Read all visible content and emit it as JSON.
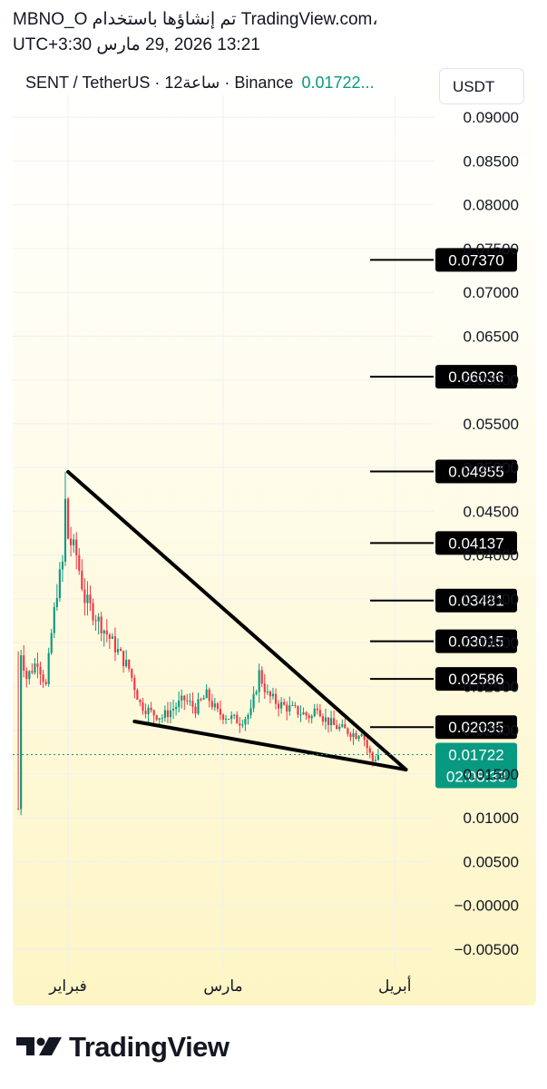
{
  "header": {
    "line1": "MBNO_O تم إنشاؤها باستخدام TradingView.com،",
    "line2": "13:21 2026 ,29 مارس UTC+3:30"
  },
  "legend": {
    "symbol": "SENT / TetherUS · 12ساعة · Binance",
    "price": "0.01722..."
  },
  "unit": "USDT",
  "brand": "TradingView",
  "colors": {
    "up": "#089981",
    "down": "#f23645",
    "line": "#000000",
    "price_badge": "#089981"
  },
  "chart_data": {
    "type": "candlestick",
    "ylim": [
      -0.0075,
      0.0925
    ],
    "y_ticks": [
      "0.09000",
      "0.08500",
      "0.08000",
      "0.07500",
      "0.07000",
      "0.06500",
      "0.06000",
      "0.05500",
      "0.05000",
      "0.04500",
      "0.04000",
      "0.03500",
      "0.03000",
      "0.02500",
      "0.02000",
      "0.01500",
      "0.01000",
      "0.00500",
      "−0.00000",
      "−0.00500"
    ],
    "x_labels": [
      {
        "label": "فبراير",
        "day": 4.0
      },
      {
        "label": "مارس",
        "day": 32.0
      },
      {
        "label": "أبريل",
        "day": 63.0
      }
    ],
    "x_range_days": [
      -6.0,
      70.0
    ],
    "candle_interval_days": 0.5,
    "anchor_points": [
      {
        "day": -5.0,
        "price": 0.011
      },
      {
        "day": -4.5,
        "price": 0.029
      },
      {
        "day": -3.5,
        "price": 0.026
      },
      {
        "day": -1.5,
        "price": 0.028
      },
      {
        "day": 0.0,
        "price": 0.025
      },
      {
        "day": 1.0,
        "price": 0.031
      },
      {
        "day": 2.0,
        "price": 0.036
      },
      {
        "day": 3.0,
        "price": 0.039
      },
      {
        "day": 3.5,
        "price": 0.046
      },
      {
        "day": 4.0,
        "price": 0.042
      },
      {
        "day": 5.5,
        "price": 0.04
      },
      {
        "day": 7.0,
        "price": 0.035
      },
      {
        "day": 9.0,
        "price": 0.033
      },
      {
        "day": 11.0,
        "price": 0.031
      },
      {
        "day": 13.0,
        "price": 0.029
      },
      {
        "day": 15.0,
        "price": 0.027
      },
      {
        "day": 17.0,
        "price": 0.023
      },
      {
        "day": 19.0,
        "price": 0.022
      },
      {
        "day": 21.0,
        "price": 0.0215
      },
      {
        "day": 23.0,
        "price": 0.0225
      },
      {
        "day": 25.0,
        "price": 0.0235
      },
      {
        "day": 27.0,
        "price": 0.0225
      },
      {
        "day": 29.0,
        "price": 0.024
      },
      {
        "day": 31.0,
        "price": 0.022
      },
      {
        "day": 33.0,
        "price": 0.0215
      },
      {
        "day": 35.0,
        "price": 0.021
      },
      {
        "day": 37.0,
        "price": 0.022
      },
      {
        "day": 38.5,
        "price": 0.0265
      },
      {
        "day": 40.0,
        "price": 0.024
      },
      {
        "day": 42.0,
        "price": 0.023
      },
      {
        "day": 44.0,
        "price": 0.0225
      },
      {
        "day": 46.0,
        "price": 0.022
      },
      {
        "day": 48.0,
        "price": 0.0215
      },
      {
        "day": 49.0,
        "price": 0.023
      },
      {
        "day": 50.0,
        "price": 0.0215
      },
      {
        "day": 52.0,
        "price": 0.0205
      },
      {
        "day": 54.0,
        "price": 0.02
      },
      {
        "day": 56.0,
        "price": 0.0195
      },
      {
        "day": 57.0,
        "price": 0.02
      },
      {
        "day": 58.0,
        "price": 0.018
      },
      {
        "day": 59.0,
        "price": 0.0165
      },
      {
        "day": 60.0,
        "price": 0.0172
      }
    ],
    "trendlines": [
      {
        "from": {
          "day": 4.0,
          "price": 0.0495
        },
        "to": {
          "day": 65.0,
          "price": 0.0155
        }
      },
      {
        "from": {
          "day": 16.0,
          "price": 0.021
        },
        "to": {
          "day": 65.0,
          "price": 0.0155
        }
      }
    ],
    "horizontal_levels": [
      {
        "price": 0.0737,
        "label": "0.07370"
      },
      {
        "price": 0.06036,
        "label": "0.06036"
      },
      {
        "price": 0.04955,
        "label": "0.04955"
      },
      {
        "price": 0.04137,
        "label": "0.04137"
      },
      {
        "price": 0.03481,
        "label": "0.03481"
      },
      {
        "price": 0.03015,
        "label": "0.03015"
      },
      {
        "price": 0.02586,
        "label": "0.02586"
      },
      {
        "price": 0.02035,
        "label": "0.02035"
      }
    ],
    "last_price": {
      "price": 0.01722,
      "label": "0.01722",
      "countdown": "02:08:33"
    }
  }
}
